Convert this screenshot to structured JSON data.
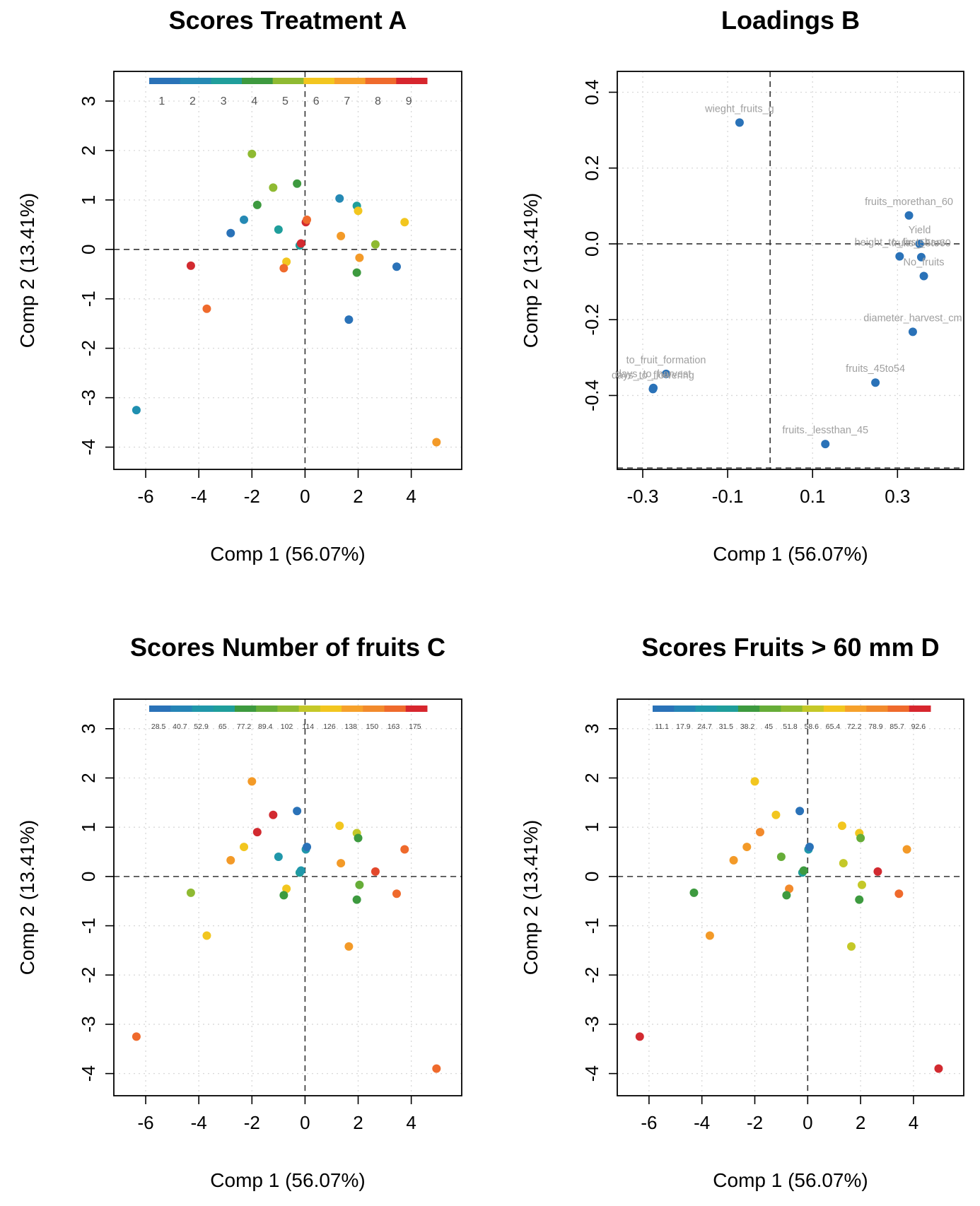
{
  "axis_labels": {
    "x": "Comp 1 (56.07%)",
    "y": "Comp 2 (13.41%)"
  },
  "chart_data": [
    {
      "id": "A",
      "type": "scatter",
      "title": "Scores Treatment A",
      "xlabel": "Comp 1 (56.07%)",
      "ylabel": "Comp 2 (13.41%)",
      "xlim": [
        -7.2,
        5.9
      ],
      "ylim": [
        -4.45,
        3.6
      ],
      "xticks": [
        -6,
        -4,
        -2,
        0,
        2,
        4
      ],
      "yticks": [
        -4,
        -3,
        -2,
        -1,
        0,
        1,
        2,
        3
      ],
      "grid": true,
      "legend": {
        "placement": "top",
        "labels": [
          "1",
          "2",
          "3",
          "4",
          "5",
          "6",
          "7",
          "8",
          "9"
        ],
        "colors": [
          "#2a72b8",
          "#2589b4",
          "#1f9e9b",
          "#3d9a3f",
          "#8fba32",
          "#f2c61f",
          "#f6a12b",
          "#ef6a2c",
          "#d7262e"
        ]
      },
      "points": [
        {
          "x": -6.35,
          "y": -3.25,
          "c": "#1f8fb0"
        },
        {
          "x": 4.95,
          "y": -3.9,
          "c": "#f39a28"
        },
        {
          "x": -4.3,
          "y": -0.33,
          "c": "#d22a30"
        },
        {
          "x": -3.7,
          "y": -1.2,
          "c": "#ef6a2c"
        },
        {
          "x": -2.8,
          "y": 0.33,
          "c": "#2a72b8"
        },
        {
          "x": -2.3,
          "y": 0.6,
          "c": "#2589b4"
        },
        {
          "x": -2.0,
          "y": 1.93,
          "c": "#8fba32"
        },
        {
          "x": -1.8,
          "y": 0.9,
          "c": "#3d9a3f"
        },
        {
          "x": -1.2,
          "y": 1.25,
          "c": "#8fba32"
        },
        {
          "x": -1.0,
          "y": 0.4,
          "c": "#1f9e9b"
        },
        {
          "x": -0.3,
          "y": 1.33,
          "c": "#3d9a3f"
        },
        {
          "x": -0.7,
          "y": -0.25,
          "c": "#f2c61f"
        },
        {
          "x": -0.8,
          "y": -0.38,
          "c": "#ef6a2c"
        },
        {
          "x": -0.2,
          "y": 0.08,
          "c": "#1f9e9b"
        },
        {
          "x": -0.15,
          "y": 0.12,
          "c": "#d22a30"
        },
        {
          "x": 0.03,
          "y": 0.55,
          "c": "#d22a30"
        },
        {
          "x": 0.07,
          "y": 0.6,
          "c": "#ef6a2c"
        },
        {
          "x": 1.3,
          "y": 1.03,
          "c": "#2589b4"
        },
        {
          "x": 1.35,
          "y": 0.27,
          "c": "#f39a28"
        },
        {
          "x": 1.95,
          "y": 0.88,
          "c": "#1f9e9b"
        },
        {
          "x": 2.0,
          "y": 0.78,
          "c": "#f2c61f"
        },
        {
          "x": 1.95,
          "y": -0.47,
          "c": "#3d9a3f"
        },
        {
          "x": 2.05,
          "y": -0.17,
          "c": "#f39a28"
        },
        {
          "x": 2.65,
          "y": 0.1,
          "c": "#8fba32"
        },
        {
          "x": 1.65,
          "y": -1.42,
          "c": "#2a72b8"
        },
        {
          "x": 3.45,
          "y": -0.35,
          "c": "#2a72b8"
        },
        {
          "x": 3.75,
          "y": 0.55,
          "c": "#f2c61f"
        }
      ]
    },
    {
      "id": "B",
      "type": "scatter",
      "title": "Loadings B",
      "xlabel": "Comp 1 (56.07%)",
      "ylabel": "Comp 2 (13.41%)",
      "xlim": [
        -0.36,
        0.456
      ],
      "ylim": [
        -0.595,
        0.455
      ],
      "xticks": [
        -0.3,
        -0.1,
        0.1,
        0.3
      ],
      "yticks": [
        -0.4,
        -0.2,
        0.0,
        0.2,
        0.4
      ],
      "grid": true,
      "point_color": "#2a72b8",
      "points": [
        {
          "x": -0.072,
          "y": 0.32,
          "label": "wieght_fruits_g"
        },
        {
          "x": 0.327,
          "y": 0.075,
          "label": "fruits_morethan_60"
        },
        {
          "x": 0.352,
          "y": 0.0,
          "label": "Yield"
        },
        {
          "x": 0.305,
          "y": -0.033,
          "label": "height_to_first_harv"
        },
        {
          "x": 0.356,
          "y": -0.035,
          "label": "fruits_55to60"
        },
        {
          "x": 0.362,
          "y": -0.085,
          "label": "No_fruits"
        },
        {
          "x": 0.336,
          "y": -0.232,
          "label": "diameter_harvest_cm"
        },
        {
          "x": 0.248,
          "y": -0.366,
          "label": "fruits_45to54"
        },
        {
          "x": 0.13,
          "y": -0.528,
          "label": "fruits._lessthan_45"
        },
        {
          "x": -0.275,
          "y": -0.38,
          "label": "days_to_harvest"
        },
        {
          "x": -0.276,
          "y": -0.383,
          "label": "days_to_flowering"
        },
        {
          "x": -0.245,
          "y": -0.343,
          "label": "to_fruit_formation"
        }
      ],
      "label_text": [
        "wieght_fruits_g",
        "fruits_morethan_60",
        "Yield",
        "height_to_first_harv",
        "fruits_55to60",
        "No_fruits",
        "diameter_harvest_cm",
        "fruits_45to54",
        "fruits._lessthan_45",
        "days_to_harvest",
        "days_to_flowering",
        "to_fruit_formation"
      ]
    },
    {
      "id": "C",
      "type": "scatter",
      "title": "Scores Number of fruits C",
      "xlabel": "Comp 1 (56.07%)",
      "ylabel": "Comp 2 (13.41%)",
      "xlim": [
        -7.2,
        5.9
      ],
      "ylim": [
        -4.45,
        3.6
      ],
      "xticks": [
        -6,
        -4,
        -2,
        0,
        2,
        4
      ],
      "yticks": [
        -4,
        -3,
        -2,
        -1,
        0,
        1,
        2,
        3
      ],
      "grid": true,
      "legend": {
        "placement": "top",
        "labels": [
          "28.5",
          "40.7",
          "52.9",
          "65",
          "77.2",
          "89.4",
          "102",
          "114",
          "126",
          "138",
          "150",
          "163",
          "175"
        ],
        "colors": [
          "#2a72b8",
          "#2584b6",
          "#2097aa",
          "#1f9e9b",
          "#3d9a3f",
          "#66ad38",
          "#8fba32",
          "#c4c828",
          "#f2c61f",
          "#f6a12b",
          "#f28a2c",
          "#ef6a2c",
          "#d7262e"
        ]
      },
      "points": [
        {
          "x": -6.35,
          "y": -3.25,
          "c": "#ef6a2c"
        },
        {
          "x": 4.95,
          "y": -3.9,
          "c": "#ef6a2c"
        },
        {
          "x": -4.3,
          "y": -0.33,
          "c": "#8fba32"
        },
        {
          "x": -3.7,
          "y": -1.2,
          "c": "#f2c61f"
        },
        {
          "x": -2.8,
          "y": 0.33,
          "c": "#f39a28"
        },
        {
          "x": -2.3,
          "y": 0.6,
          "c": "#f2c61f"
        },
        {
          "x": -2.0,
          "y": 1.93,
          "c": "#f39a28"
        },
        {
          "x": -1.8,
          "y": 0.9,
          "c": "#d22a30"
        },
        {
          "x": -1.2,
          "y": 1.25,
          "c": "#d22a30"
        },
        {
          "x": -1.0,
          "y": 0.4,
          "c": "#2097aa"
        },
        {
          "x": -0.3,
          "y": 1.33,
          "c": "#2a72b8"
        },
        {
          "x": -0.7,
          "y": -0.25,
          "c": "#f2c61f"
        },
        {
          "x": -0.8,
          "y": -0.38,
          "c": "#3d9a3f"
        },
        {
          "x": -0.2,
          "y": 0.08,
          "c": "#1f9e9b"
        },
        {
          "x": -0.15,
          "y": 0.12,
          "c": "#2097aa"
        },
        {
          "x": 0.03,
          "y": 0.55,
          "c": "#2097aa"
        },
        {
          "x": 0.07,
          "y": 0.6,
          "c": "#2a72b8"
        },
        {
          "x": 1.3,
          "y": 1.03,
          "c": "#f2c61f"
        },
        {
          "x": 1.35,
          "y": 0.27,
          "c": "#f39a28"
        },
        {
          "x": 1.95,
          "y": 0.88,
          "c": "#c4c828"
        },
        {
          "x": 2.0,
          "y": 0.78,
          "c": "#3d9a3f"
        },
        {
          "x": 1.95,
          "y": -0.47,
          "c": "#3d9a3f"
        },
        {
          "x": 2.05,
          "y": -0.17,
          "c": "#66ad38"
        },
        {
          "x": 2.65,
          "y": 0.1,
          "c": "#e3482c"
        },
        {
          "x": 1.65,
          "y": -1.42,
          "c": "#f39a28"
        },
        {
          "x": 3.45,
          "y": -0.35,
          "c": "#ef6a2c"
        },
        {
          "x": 3.75,
          "y": 0.55,
          "c": "#ef6a2c"
        }
      ]
    },
    {
      "id": "D",
      "type": "scatter",
      "title": "Scores Fruits > 60 mm D",
      "xlabel": "Comp 1 (56.07%)",
      "ylabel": "Comp 2 (13.41%)",
      "xlim": [
        -7.2,
        5.9
      ],
      "ylim": [
        -4.45,
        3.6
      ],
      "xticks": [
        -6,
        -4,
        -2,
        0,
        2,
        4
      ],
      "yticks": [
        -4,
        -3,
        -2,
        -1,
        0,
        1,
        2,
        3
      ],
      "grid": true,
      "legend": {
        "placement": "top",
        "labels": [
          "11.1",
          "17.9",
          "24.7",
          "31.5",
          "38.2",
          "45",
          "51.8",
          "58.6",
          "65.4",
          "72.2",
          "78.9",
          "85.7",
          "92.6"
        ],
        "colors": [
          "#2a72b8",
          "#2584b6",
          "#2097aa",
          "#1f9e9b",
          "#3d9a3f",
          "#66ad38",
          "#8fba32",
          "#c4c828",
          "#f2c61f",
          "#f6a12b",
          "#f28a2c",
          "#ef6a2c",
          "#d7262e"
        ]
      },
      "points": [
        {
          "x": -6.35,
          "y": -3.25,
          "c": "#d22a30"
        },
        {
          "x": 4.95,
          "y": -3.9,
          "c": "#d22a30"
        },
        {
          "x": -4.3,
          "y": -0.33,
          "c": "#3d9a3f"
        },
        {
          "x": -3.7,
          "y": -1.2,
          "c": "#f39a28"
        },
        {
          "x": -2.8,
          "y": 0.33,
          "c": "#f39a28"
        },
        {
          "x": -2.3,
          "y": 0.6,
          "c": "#f39a28"
        },
        {
          "x": -2.0,
          "y": 1.93,
          "c": "#f2c61f"
        },
        {
          "x": -1.8,
          "y": 0.9,
          "c": "#f28a2c"
        },
        {
          "x": -1.2,
          "y": 1.25,
          "c": "#f2c61f"
        },
        {
          "x": -1.0,
          "y": 0.4,
          "c": "#66ad38"
        },
        {
          "x": -0.3,
          "y": 1.33,
          "c": "#2a72b8"
        },
        {
          "x": -0.7,
          "y": -0.25,
          "c": "#f28a2c"
        },
        {
          "x": -0.8,
          "y": -0.38,
          "c": "#3d9a3f"
        },
        {
          "x": -0.2,
          "y": 0.08,
          "c": "#1f9e9b"
        },
        {
          "x": -0.15,
          "y": 0.12,
          "c": "#3d9a3f"
        },
        {
          "x": 0.03,
          "y": 0.55,
          "c": "#2097aa"
        },
        {
          "x": 0.07,
          "y": 0.6,
          "c": "#2a72b8"
        },
        {
          "x": 1.3,
          "y": 1.03,
          "c": "#f2c61f"
        },
        {
          "x": 1.35,
          "y": 0.27,
          "c": "#c4c828"
        },
        {
          "x": 1.95,
          "y": 0.88,
          "c": "#f2c61f"
        },
        {
          "x": 2.0,
          "y": 0.78,
          "c": "#66ad38"
        },
        {
          "x": 1.95,
          "y": -0.47,
          "c": "#3d9a3f"
        },
        {
          "x": 2.05,
          "y": -0.17,
          "c": "#c4c828"
        },
        {
          "x": 2.65,
          "y": 0.1,
          "c": "#d22a30"
        },
        {
          "x": 1.65,
          "y": -1.42,
          "c": "#c4c828"
        },
        {
          "x": 3.45,
          "y": -0.35,
          "c": "#ef6a2c"
        },
        {
          "x": 3.75,
          "y": 0.55,
          "c": "#f39a28"
        }
      ]
    }
  ]
}
